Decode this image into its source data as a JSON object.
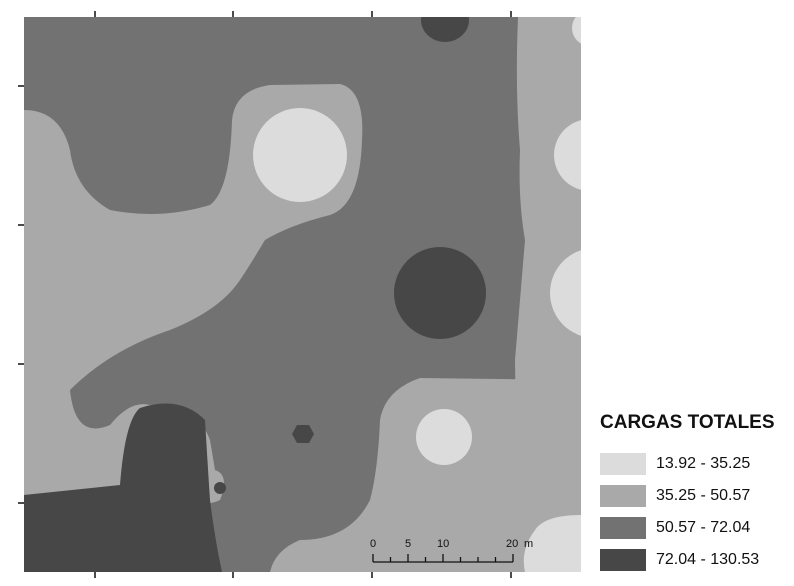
{
  "legend": {
    "title": "CARGAS TOTALES",
    "classes": [
      {
        "label": "13.92 - 35.25",
        "color": "#dcdcdc"
      },
      {
        "label": "35.25 - 50.57",
        "color": "#a9a9a9"
      },
      {
        "label": "50.57 - 72.04",
        "color": "#727272"
      },
      {
        "label": "72.04 - 130.53",
        "color": "#474747"
      }
    ]
  },
  "scale_bar": {
    "labels": [
      "0",
      "5",
      "10",
      "20"
    ],
    "unit": "m"
  }
}
